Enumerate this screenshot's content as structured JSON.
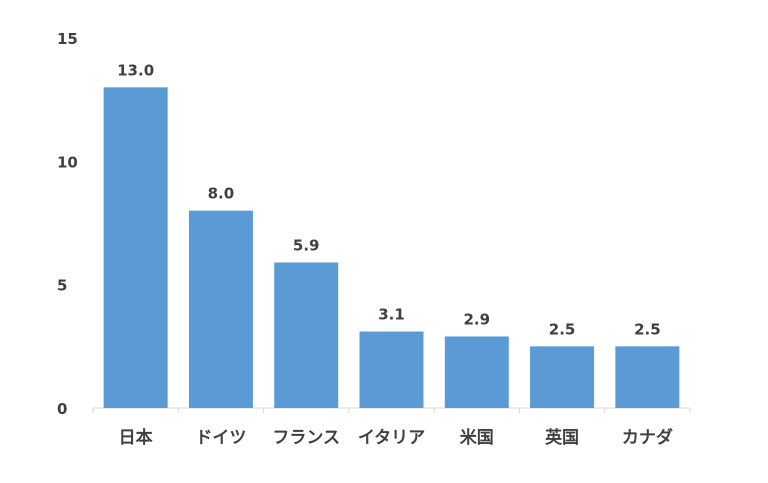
{
  "chart_data": {
    "type": "bar",
    "title": "",
    "xlabel": "",
    "ylabel": "",
    "categories": [
      "日本",
      "ドイツ",
      "フランス",
      "イタリア",
      "米国",
      "英国",
      "カナダ"
    ],
    "values": [
      13.0,
      8.0,
      5.9,
      3.1,
      2.9,
      2.5,
      2.5
    ],
    "value_labels": [
      "13.0",
      "8.0",
      "5.9",
      "3.1",
      "2.9",
      "2.5",
      "2.5"
    ],
    "y_ticks": [
      0,
      5,
      10,
      15
    ],
    "ylim": [
      0,
      15
    ],
    "grid": false,
    "legend": "none",
    "colors": {
      "bar": "#5b9bd5",
      "text": "#404040",
      "axis": "#d9d9d9"
    }
  }
}
